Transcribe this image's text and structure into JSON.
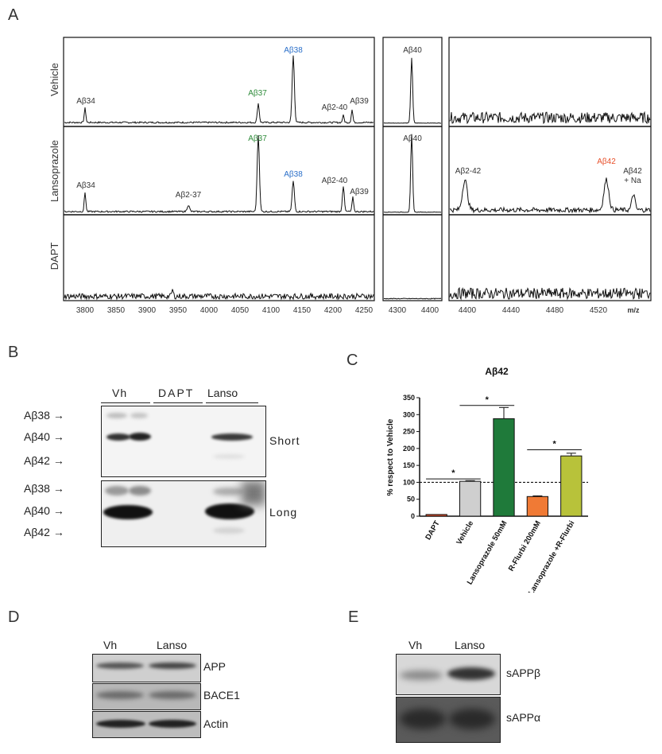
{
  "panels": {
    "A": "A",
    "B": "B",
    "C": "C",
    "D": "D",
    "E": "E"
  },
  "panelA": {
    "rows": [
      "Vehicle",
      "Lansoprazole",
      "DAPT"
    ],
    "box1_ticks": [
      "3800",
      "3850",
      "3900",
      "3950",
      "4000",
      "4050",
      "4100",
      "4150",
      "4200",
      "4250"
    ],
    "box2_ticks": [
      "4300",
      "4400"
    ],
    "box3_ticks": [
      "4400",
      "4440",
      "4480",
      "4520"
    ],
    "mz": "m/z",
    "vehicle_labels": {
      "ab34": "Aβ34",
      "ab37": "Aβ37",
      "ab38": "Aβ38",
      "ab2_40": "Aβ2-40",
      "ab39": "Aβ39",
      "ab40": "Aβ40"
    },
    "lanso_labels": {
      "ab34": "Aβ34",
      "ab2_37": "Aβ2-37",
      "ab37": "Aβ37",
      "ab38": "Aβ38",
      "ab2_40": "Aβ2-40",
      "ab39": "Aβ39",
      "ab40": "Aβ40",
      "ab2_42": "Aβ2-42",
      "ab42": "Aβ42",
      "ab42na_1": "Aβ42",
      "ab42na_2": "+ Na"
    },
    "colors": {
      "green": "#2e8b3a",
      "blue": "#2a6fc9",
      "red": "#e8502a"
    }
  },
  "panelB": {
    "lanes": [
      "Vh",
      "DAPT",
      "Lanso"
    ],
    "markers": [
      "Aβ38",
      "Aβ40",
      "Aβ42"
    ],
    "exposure": [
      "Short",
      "Long"
    ]
  },
  "panelD": {
    "lanes": [
      "Vh",
      "Lanso"
    ],
    "rows": [
      "APP",
      "BACE1",
      "Actin"
    ]
  },
  "panelE": {
    "lanes": [
      "Vh",
      "Lanso"
    ],
    "rows": [
      "sAPPβ",
      "sAPPα"
    ]
  },
  "chart_data": {
    "type": "bar",
    "title": "Aβ42",
    "ylabel": "% respect to Vehicle",
    "xlabel": "",
    "ylim": [
      0,
      350
    ],
    "yticks": [
      "0",
      "50",
      "100",
      "150",
      "200",
      "250",
      "300",
      "350"
    ],
    "categories": [
      "DAPT",
      "Vehicle",
      "Lansoprazole 50mM",
      "R-Flurbi 200mM",
      "Lansoprazole +R-Flurbi"
    ],
    "values": [
      5,
      103,
      288,
      58,
      178
    ],
    "errors": [
      1,
      2,
      33,
      2,
      8
    ],
    "colors": [
      "#e8502a",
      "#cfcfcf",
      "#1f7a3a",
      "#f07a35",
      "#b8c23a"
    ],
    "reference_line": 100,
    "significance": [
      "*",
      "*",
      "*"
    ]
  }
}
